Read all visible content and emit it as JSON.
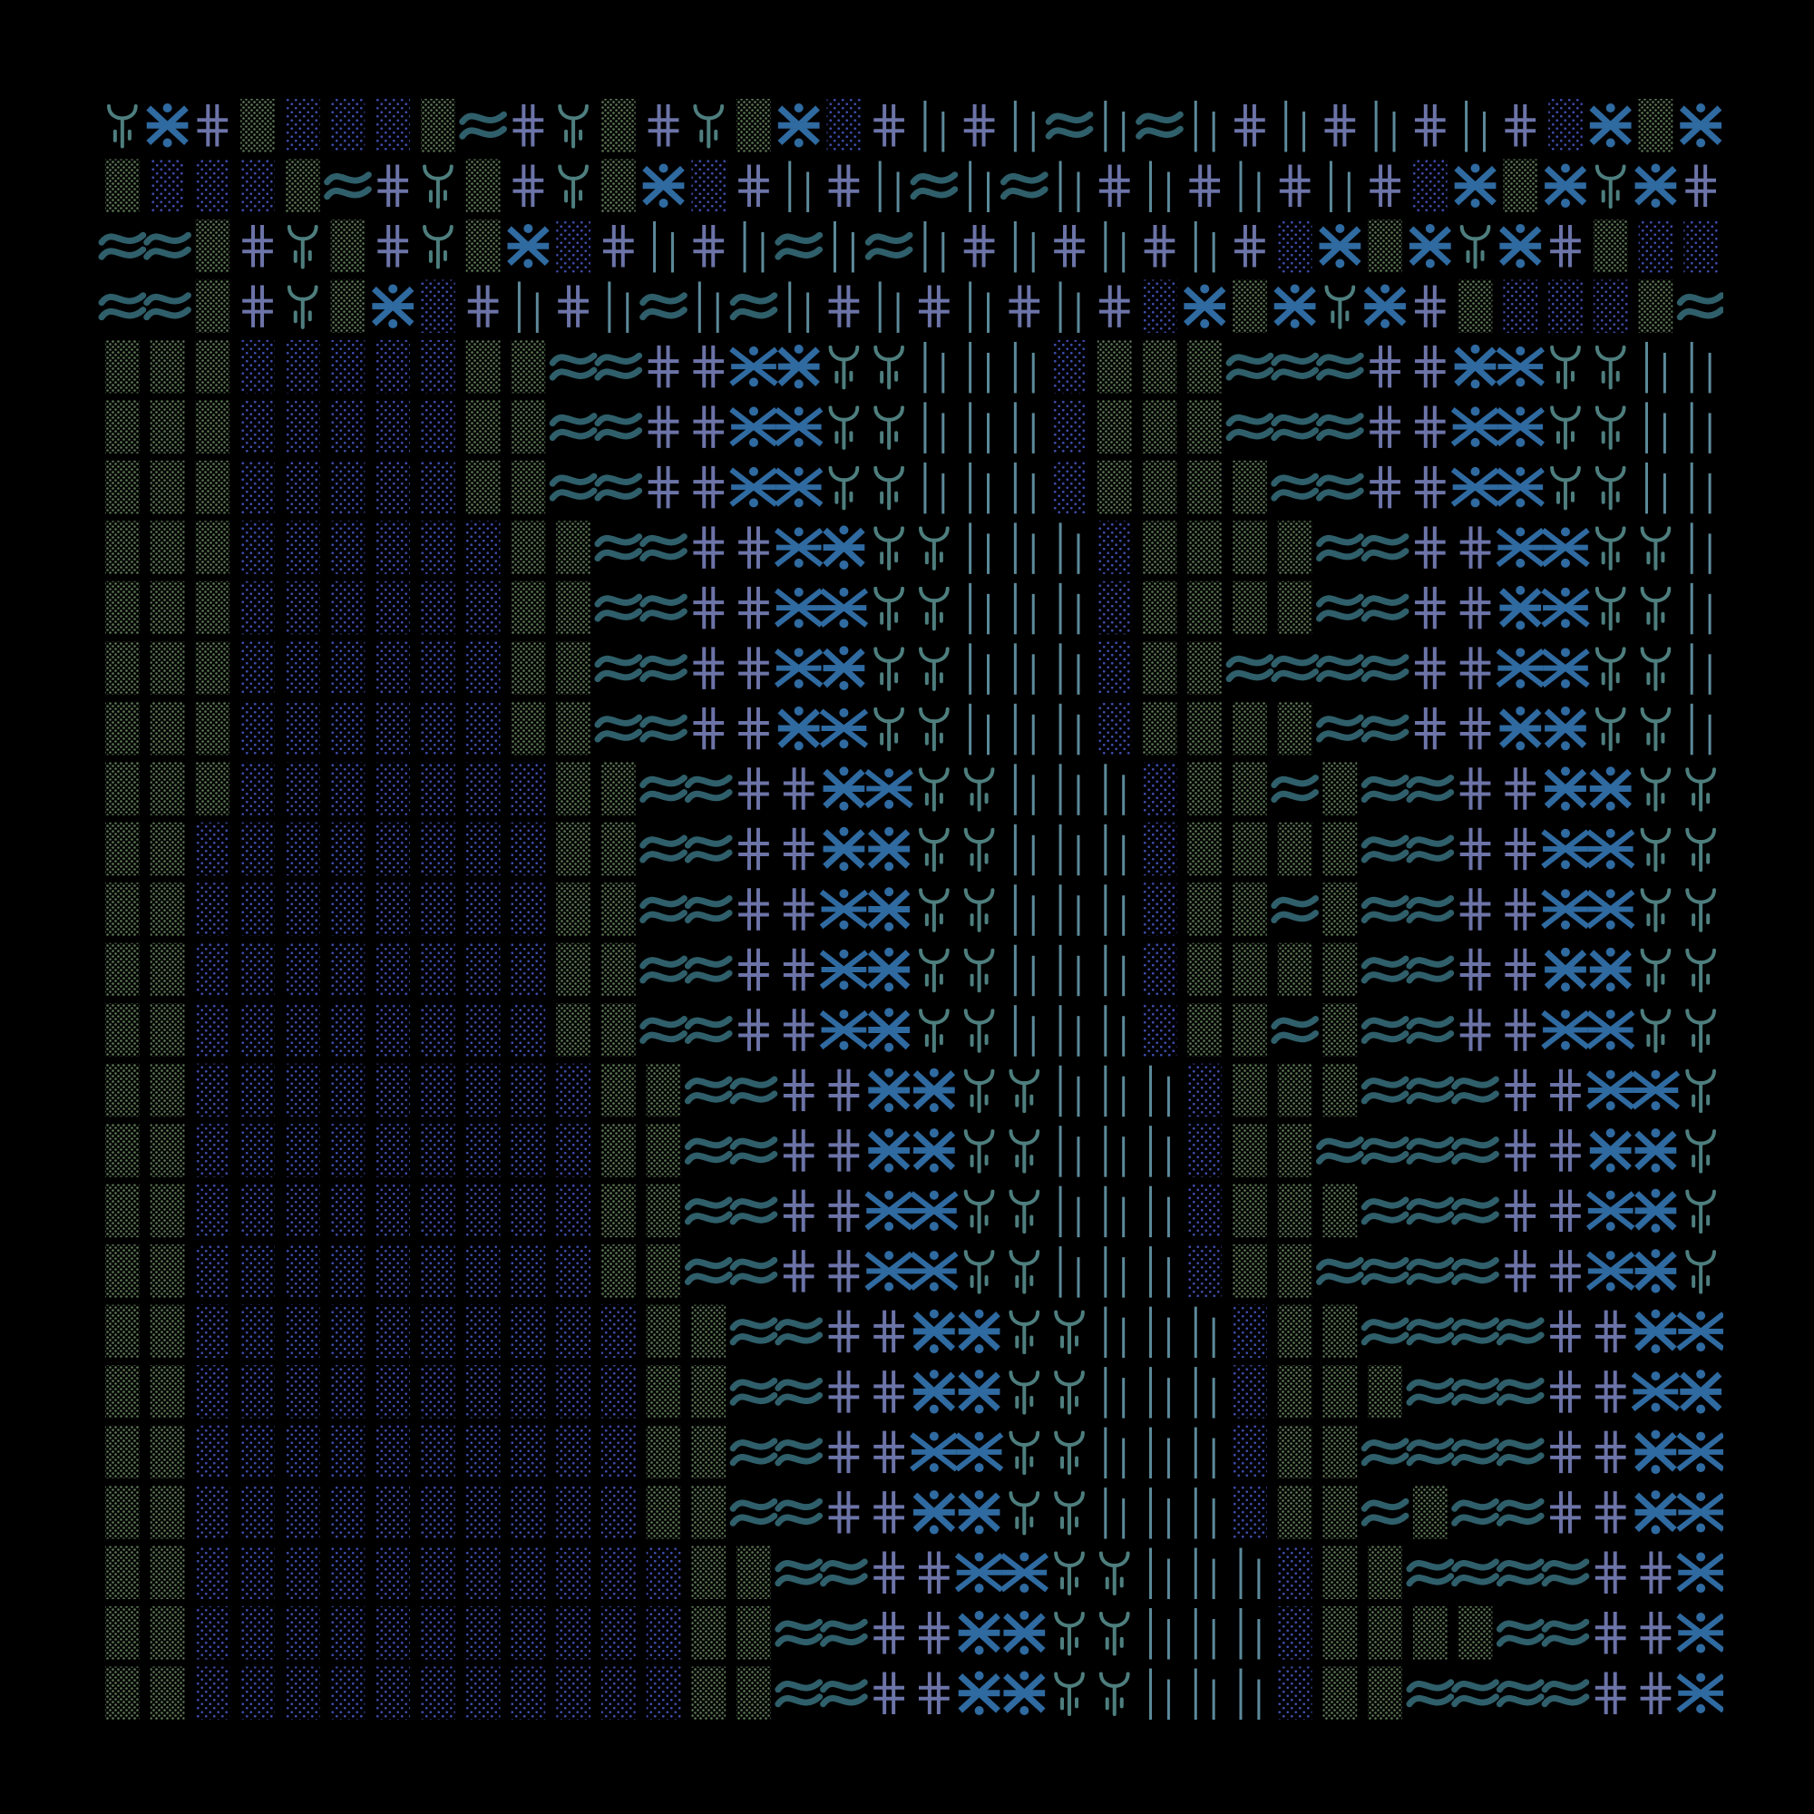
{
  "artwork": {
    "description_visible_text": "",
    "background_color": "#000000",
    "palette": {
      "dot_green": "#5f7a58",
      "dot_blue": "#3d4aa8",
      "wave": "#2f5f6a",
      "cross": "#6c74a8",
      "star": "#2f6aa0",
      "fork": "#4e7e7e",
      "bar": "#5c8a9a"
    },
    "glyph_types": [
      "dot-green-tile",
      "dot-blue-tile",
      "wave-glyph",
      "double-cross-glyph",
      "asterisk-star-glyph",
      "diamond-star-glyph",
      "fork-glyph",
      "vertical-bar-glyph"
    ],
    "grid": {
      "columns": 36,
      "rows": 27
    }
  }
}
